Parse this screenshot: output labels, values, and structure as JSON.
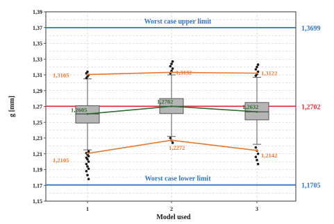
{
  "chart_data": {
    "type": "box",
    "xlabel": "Model used",
    "ylabel": "g [mm]",
    "ylim": [
      1.15,
      1.39
    ],
    "yticks": [
      "1,15",
      "1,17",
      "1,19",
      "1,21",
      "1,23",
      "1,25",
      "1,27",
      "1,29",
      "1,31",
      "1,33",
      "1,35",
      "1,37",
      "1,39"
    ],
    "categories": [
      "1",
      "2",
      "3"
    ],
    "grid": true,
    "boxes": [
      {
        "category": "1",
        "q1": 1.249,
        "median": 1.2605,
        "q3": 1.271,
        "whisker_low": 1.215,
        "whisker_high": 1.305,
        "outliers": [
          1.306,
          1.308,
          1.31,
          1.312,
          1.314,
          1.213,
          1.211,
          1.209,
          1.207,
          1.205,
          1.203,
          1.2,
          1.197,
          1.194,
          1.191,
          1.188,
          1.183,
          1.178
        ]
      },
      {
        "category": "2",
        "q1": 1.261,
        "median": 1.2702,
        "q3": 1.28,
        "whisker_low": 1.232,
        "whisker_high": 1.31,
        "outliers": [
          1.312,
          1.315,
          1.318,
          1.321,
          1.324,
          1.327,
          1.23,
          1.227,
          1.224
        ]
      },
      {
        "category": "3",
        "q1": 1.253,
        "median": 1.2632,
        "q3": 1.275,
        "whisker_low": 1.222,
        "whisker_high": 1.307,
        "outliers": [
          1.309,
          1.311,
          1.314,
          1.317,
          1.32,
          1.323,
          1.218,
          1.214,
          1.21,
          1.206,
          1.202,
          1.197
        ]
      }
    ],
    "series": [
      {
        "values": [
          1.3105,
          1.3132,
          1.3122
        ],
        "labels": [
          "1,3105",
          "1,3132",
          "1,3122"
        ],
        "color": "#e8772e"
      },
      {
        "values": [
          1.2605,
          1.2702,
          1.2632
        ],
        "labels": [
          "1,2605",
          "1,2702",
          "1,2632"
        ],
        "color": "#2e6b2e"
      },
      {
        "values": [
          1.2105,
          1.2272,
          1.2142
        ],
        "labels": [
          "1,2105",
          "1,2272",
          "1,2142"
        ],
        "color": "#e8772e"
      }
    ],
    "reference_lines": [
      {
        "value": 1.3699,
        "label": "1,3699",
        "annotation": "Worst case upper limit",
        "color": "#2e75c8"
      },
      {
        "value": 1.2702,
        "label": "1,2702",
        "annotation": "",
        "color": "#e0303a"
      },
      {
        "value": 1.1705,
        "label": "1,1705",
        "annotation": "Worst case lower limit",
        "color": "#2e75c8"
      }
    ],
    "colors": {
      "box_fill": "#b5b5b5",
      "box_stroke": "#555555",
      "outlier": "#1a1a1a",
      "grid": "#c8c8c8"
    }
  }
}
